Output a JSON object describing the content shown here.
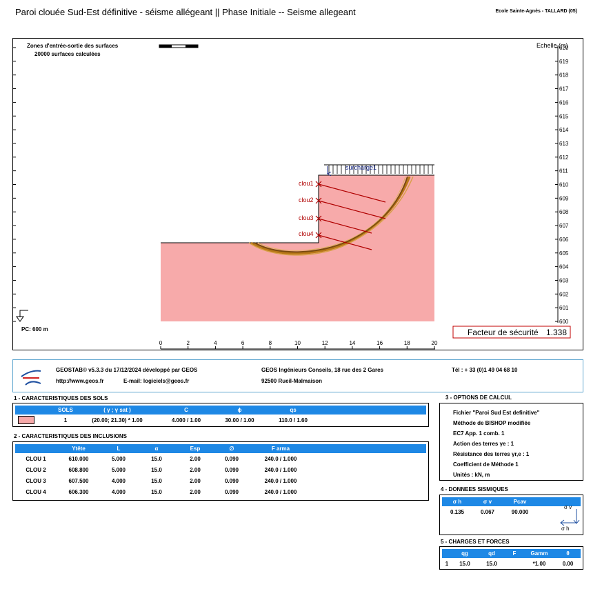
{
  "header": {
    "title": "Paroi clouée Sud-Est définitive - séisme allégeant || Phase Initiale -- Seisme allegeant",
    "school": "Ecole Sainte-Agnès - TALLARD (05)"
  },
  "drawing": {
    "zones_line1": "Zones d'entrée-sortie des surfaces",
    "zones_line2": "20000 surfaces calculées",
    "scale_label": "Echelle (m)",
    "pc_label": "PC: 600 m",
    "surcharge_label": "surcharge1",
    "safety_label": "Facteur de sécurité",
    "safety_value": "1.338",
    "y_ticks": [
      "620",
      "619",
      "618",
      "617",
      "616",
      "615",
      "614",
      "613",
      "612",
      "611",
      "610",
      "609",
      "608",
      "607",
      "606",
      "605",
      "604",
      "603",
      "602",
      "601",
      "600"
    ],
    "x_ticks": [
      "0",
      "2",
      "4",
      "6",
      "8",
      "10",
      "12",
      "14",
      "16",
      "18",
      "20"
    ],
    "nails": [
      "clou1",
      "clou2",
      "clou3",
      "clou4"
    ],
    "soil_color": "#f7aaaa",
    "slip_color": "#c8891f"
  },
  "footer": {
    "product": "GEOSTAB© v5.3.3 du 17/12/2024 développé par GEOS",
    "url": "http://www.geos.fr",
    "email": "E-mail: logiciels@geos.fr",
    "company": "GEOS Ingénieurs Conseils, 18 rue des 2 Gares",
    "city": "92500 Rueil-Malmaison",
    "tel": "Tél : + 33 (0)1 49 04 68 10"
  },
  "soils": {
    "title": "1 - CARACTERISTIQUES DES SOLS",
    "headers": [
      "SOLS",
      "( γ ; γ sat )",
      "C",
      "ϕ",
      "qs"
    ],
    "row": [
      "1",
      "(20.00; 21.30) * 1.00",
      "4.000 / 1.00",
      "30.00 / 1.00",
      "110.0 / 1.60"
    ]
  },
  "inclusions": {
    "title": "2 - CARACTERISTIQUES DES INCLUSIONS",
    "headers": [
      "",
      "Ytête",
      "L",
      "α",
      "Esp",
      "∅",
      "F arma"
    ],
    "rows": [
      [
        "CLOU 1",
        "610.000",
        "5.000",
        "15.0",
        "2.00",
        "0.090",
        "240.0 / 1.000"
      ],
      [
        "CLOU 2",
        "608.800",
        "5.000",
        "15.0",
        "2.00",
        "0.090",
        "240.0 / 1.000"
      ],
      [
        "CLOU 3",
        "607.500",
        "4.000",
        "15.0",
        "2.00",
        "0.090",
        "240.0 / 1.000"
      ],
      [
        "CLOU 4",
        "606.300",
        "4.000",
        "15.0",
        "2.00",
        "0.090",
        "240.0 / 1.000"
      ]
    ]
  },
  "options": {
    "title": "3 - OPTIONS DE CALCUL",
    "lines": [
      "Fichier \"Paroi Sud Est definitive\"",
      "Méthode de BISHOP modifiée",
      "EC7 App. 1 comb. 1",
      "Action des terres γe : 1",
      "Résistance des terres γr,e : 1",
      "Coefficient de Méthode 1",
      "Unités : kN, m"
    ]
  },
  "seismic": {
    "title": "4 - DONNEES SISMIQUES",
    "headers": [
      "σ h",
      "σ v",
      "Pcav"
    ],
    "values": [
      "0.135",
      "0.067",
      "90.000"
    ],
    "sv_label": "σ v",
    "sh_label": "σ h"
  },
  "charges": {
    "title": "5 - CHARGES ET FORCES",
    "headers": [
      "",
      "qg",
      "qd",
      "F",
      "Gamm",
      "θ"
    ],
    "row": [
      "1",
      "15.0",
      "15.0",
      "",
      "*1.00",
      "0.00"
    ]
  }
}
